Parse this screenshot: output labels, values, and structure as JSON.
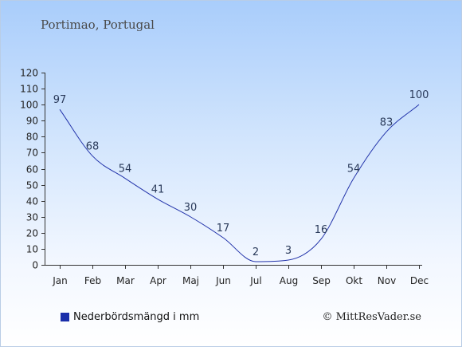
{
  "title": "Portimao, Portugal",
  "legend_label": "Nederbördsmängd i mm",
  "credit": "© MittResVader.se",
  "colors": {
    "line": "#2233aa",
    "swatch": "#1a2eaa"
  },
  "chart_data": {
    "type": "line",
    "categories": [
      "Jan",
      "Feb",
      "Mar",
      "Apr",
      "Maj",
      "Jun",
      "Jul",
      "Aug",
      "Sep",
      "Okt",
      "Nov",
      "Dec"
    ],
    "series": [
      {
        "name": "Nederbördsmängd i mm",
        "values": [
          97,
          68,
          54,
          41,
          30,
          17,
          2,
          3,
          16,
          54,
          83,
          100
        ]
      }
    ],
    "ylim": [
      0,
      120
    ],
    "yticks": [
      0,
      10,
      20,
      30,
      40,
      50,
      60,
      70,
      80,
      90,
      100,
      110,
      120
    ],
    "grid": false,
    "legend_position": "bottom-left"
  }
}
